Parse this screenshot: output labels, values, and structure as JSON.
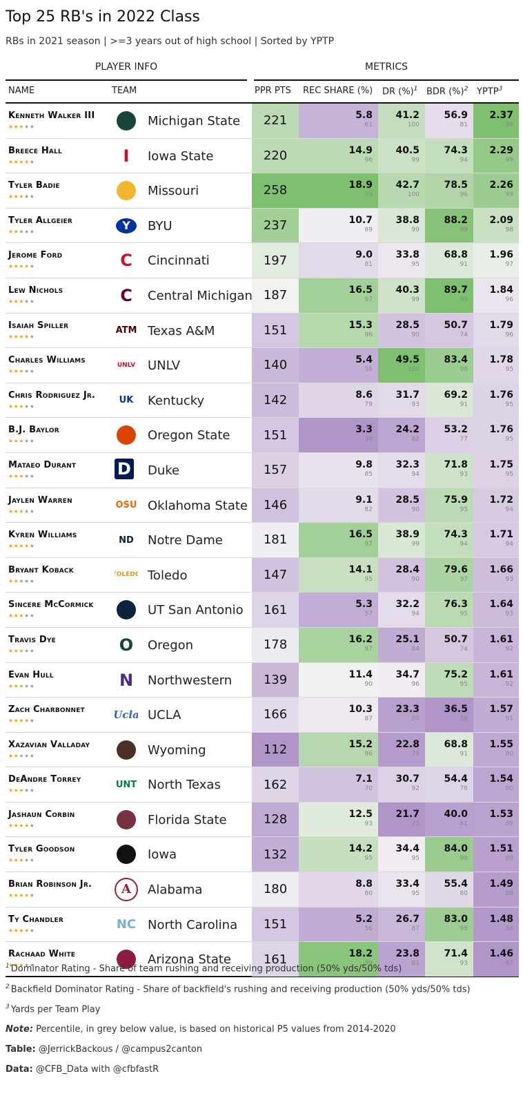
{
  "title": "Top 25 RB's in 2022 Class",
  "subtitle": "RBs in 2021 season | >=3 years out of high school | Sorted by YPTP",
  "groups": {
    "player_info": "PLAYER INFO",
    "metrics": "METRICS"
  },
  "columns": {
    "name": "NAME",
    "team": "TEAM",
    "ppr": "PPR PTS",
    "rec": "REC SHARE (%)",
    "dr": "DR (%)",
    "dr_sup": "1",
    "bdr": "BDR (%)",
    "bdr_sup": "2",
    "yptp": "YPTP",
    "yptp_sup": "3"
  },
  "footnotes": {
    "f1_sup": "1",
    "f1": "Dominator Rating - Share of team rushing and receiving production (50% yds/50% tds)",
    "f2_sup": "2",
    "f2": "Backfield Dominator Rating - Share of backfield's rushing and receiving production (50% yds/50% tds)",
    "f3_sup": "3",
    "f3": "Yards per Team Play",
    "note_label": "Note:",
    "note": " Percentile, in grey below value, is based on historical P5 values from 2014-2020",
    "table_label": "Table:",
    "table": " @JerrickBackous / @campus2canton",
    "data_label": "Data:",
    "data": " @CFB_Data with @cfbfastR"
  },
  "colors": {
    "purple_dark": "#b095c9",
    "purple_light": "#f1e8f3",
    "neutral": "#f5f3f5",
    "green_light": "#e6f4e2",
    "green_dark": "#7fc070",
    "logo_red": "#c8102e"
  },
  "chart_data": {
    "type": "table",
    "title": "Top 25 RB's in 2022 Class",
    "ppr_range": [
      112,
      258
    ],
    "rows": [
      {
        "name": "Kenneth Walker III",
        "stars": 3,
        "team": "Michigan State",
        "logo": "spartan-helmet",
        "logo_text": "",
        "logo_color": "#18453b",
        "ppr": 221,
        "rec": 5.8,
        "rec_pct": 61,
        "dr": 41.2,
        "dr_pct": 100,
        "bdr": 56.9,
        "bdr_pct": 81,
        "yptp": 2.37,
        "yptp_pct": 99
      },
      {
        "name": "Breece Hall",
        "stars": 4,
        "team": "Iowa State",
        "logo": "iowa-state-i",
        "logo_text": "I",
        "logo_color": "#c8102e",
        "ppr": 220,
        "rec": 14.9,
        "rec_pct": 96,
        "dr": 40.5,
        "dr_pct": 99,
        "bdr": 74.3,
        "bdr_pct": 94,
        "yptp": 2.29,
        "yptp_pct": 99
      },
      {
        "name": "Tyler Badie",
        "stars": 3,
        "team": "Missouri",
        "logo": "missouri-tiger",
        "logo_text": "",
        "logo_color": "#f1b82d",
        "ppr": 258,
        "rec": 18.9,
        "rec_pct": 99,
        "dr": 42.7,
        "dr_pct": 100,
        "bdr": 78.5,
        "bdr_pct": 96,
        "yptp": 2.26,
        "yptp_pct": 99
      },
      {
        "name": "Tyler Allgeier",
        "stars": 2,
        "team": "BYU",
        "logo": "byu-oval",
        "logo_text": "Y",
        "logo_color": "#0033a0",
        "ppr": 237,
        "rec": 10.7,
        "rec_pct": 89,
        "dr": 38.8,
        "dr_pct": 99,
        "bdr": 88.2,
        "bdr_pct": 99,
        "yptp": 2.09,
        "yptp_pct": 98
      },
      {
        "name": "Jerome Ford",
        "stars": 4,
        "team": "Cincinnati",
        "logo": "cincinnati-c",
        "logo_text": "C",
        "logo_color": "#c8102e",
        "ppr": 197,
        "rec": 9.0,
        "rec_pct": 81,
        "dr": 33.8,
        "dr_pct": 95,
        "bdr": 68.8,
        "bdr_pct": 91,
        "yptp": 1.96,
        "yptp_pct": 97
      },
      {
        "name": "Lew Nichols",
        "stars": 3,
        "team": "Central Michigan",
        "logo": "central-michigan-c",
        "logo_text": "C",
        "logo_color": "#6a0032",
        "ppr": 187,
        "rec": 16.5,
        "rec_pct": 97,
        "dr": 40.3,
        "dr_pct": 99,
        "bdr": 89.7,
        "bdr_pct": 99,
        "yptp": 1.84,
        "yptp_pct": 96
      },
      {
        "name": "Isaiah Spiller",
        "stars": 4,
        "team": "Texas A&M",
        "logo": "texas-am-atm",
        "logo_text": "ATM",
        "logo_color": "#500000",
        "ppr": 151,
        "rec": 15.3,
        "rec_pct": 96,
        "dr": 28.5,
        "dr_pct": 90,
        "bdr": 50.7,
        "bdr_pct": 74,
        "yptp": 1.79,
        "yptp_pct": 96
      },
      {
        "name": "Charles Williams",
        "stars": 3,
        "team": "UNLV",
        "logo": "unlv-wordmark",
        "logo_text": "UNLV",
        "logo_color": "#cf0a2c",
        "ppr": 140,
        "rec": 5.4,
        "rec_pct": 58,
        "dr": 49.5,
        "dr_pct": 100,
        "bdr": 83.4,
        "bdr_pct": 98,
        "yptp": 1.78,
        "yptp_pct": 95
      },
      {
        "name": "Chris Rodriguez Jr.",
        "stars": 3,
        "team": "Kentucky",
        "logo": "kentucky-uk",
        "logo_text": "UK",
        "logo_color": "#0033a0",
        "ppr": 142,
        "rec": 8.6,
        "rec_pct": 79,
        "dr": 31.7,
        "dr_pct": 93,
        "bdr": 69.2,
        "bdr_pct": 91,
        "yptp": 1.76,
        "yptp_pct": 95
      },
      {
        "name": "B.J. Baylor",
        "stars": 3,
        "team": "Oregon State",
        "logo": "oregon-state-beaver",
        "logo_text": "",
        "logo_color": "#dc4405",
        "ppr": 151,
        "rec": 3.3,
        "rec_pct": 38,
        "dr": 24.2,
        "dr_pct": 82,
        "bdr": 53.2,
        "bdr_pct": 77,
        "yptp": 1.76,
        "yptp_pct": 95
      },
      {
        "name": "Mataeo Durant",
        "stars": 3,
        "team": "Duke",
        "logo": "duke-d",
        "logo_text": "D",
        "logo_color": "#001a57",
        "ppr": 157,
        "rec": 9.8,
        "rec_pct": 85,
        "dr": 32.3,
        "dr_pct": 94,
        "bdr": 71.8,
        "bdr_pct": 93,
        "yptp": 1.75,
        "yptp_pct": 95
      },
      {
        "name": "Jaylen Warren",
        "stars": 3,
        "team": "Oklahoma State",
        "logo": "oklahoma-state-osu",
        "logo_text": "OSU",
        "logo_color": "#ff6600",
        "ppr": 146,
        "rec": 9.1,
        "rec_pct": 82,
        "dr": 28.5,
        "dr_pct": 90,
        "bdr": 75.9,
        "bdr_pct": 95,
        "yptp": 1.72,
        "yptp_pct": 94
      },
      {
        "name": "Kyren Williams",
        "stars": 4,
        "team": "Notre Dame",
        "logo": "notre-dame-nd",
        "logo_text": "ND",
        "logo_color": "#0c2340",
        "ppr": 181,
        "rec": 16.5,
        "rec_pct": 97,
        "dr": 38.9,
        "dr_pct": 99,
        "bdr": 74.3,
        "bdr_pct": 94,
        "yptp": 1.71,
        "yptp_pct": 94
      },
      {
        "name": "Bryant Koback",
        "stars": 2,
        "team": "Toledo",
        "logo": "toledo-rocket",
        "logo_text": "TOLEDO",
        "logo_color": "#d4a017",
        "ppr": 147,
        "rec": 14.1,
        "rec_pct": 95,
        "dr": 28.4,
        "dr_pct": 90,
        "bdr": 79.6,
        "bdr_pct": 97,
        "yptp": 1.66,
        "yptp_pct": 93
      },
      {
        "name": "Sincere McCormick",
        "stars": 3,
        "team": "UT San Antonio",
        "logo": "utsa-roadrunner",
        "logo_text": "",
        "logo_color": "#0c2340",
        "ppr": 161,
        "rec": 5.3,
        "rec_pct": 57,
        "dr": 32.2,
        "dr_pct": 94,
        "bdr": 76.3,
        "bdr_pct": 95,
        "yptp": 1.64,
        "yptp_pct": 93
      },
      {
        "name": "Travis Dye",
        "stars": 3,
        "team": "Oregon",
        "logo": "oregon-o",
        "logo_text": "O",
        "logo_color": "#154733",
        "ppr": 178,
        "rec": 16.2,
        "rec_pct": 97,
        "dr": 25.1,
        "dr_pct": 84,
        "bdr": 50.7,
        "bdr_pct": 74,
        "yptp": 1.61,
        "yptp_pct": 92
      },
      {
        "name": "Evan Hull",
        "stars": 3,
        "team": "Northwestern",
        "logo": "northwestern-n",
        "logo_text": "N",
        "logo_color": "#4e2a84",
        "ppr": 139,
        "rec": 11.4,
        "rec_pct": 90,
        "dr": 34.7,
        "dr_pct": 96,
        "bdr": 75.2,
        "bdr_pct": 95,
        "yptp": 1.61,
        "yptp_pct": 92
      },
      {
        "name": "Zach Charbonnet",
        "stars": 4,
        "team": "UCLA",
        "logo": "ucla-script",
        "logo_text": "Ucla",
        "logo_color": "#2d68c4",
        "ppr": 166,
        "rec": 10.3,
        "rec_pct": 87,
        "dr": 23.3,
        "dr_pct": 80,
        "bdr": 36.5,
        "bdr_pct": 56,
        "yptp": 1.57,
        "yptp_pct": 91
      },
      {
        "name": "Xazavian Valladay",
        "stars": 2,
        "team": "Wyoming",
        "logo": "wyoming-cowboy",
        "logo_text": "",
        "logo_color": "#492f24",
        "ppr": 112,
        "rec": 15.2,
        "rec_pct": 96,
        "dr": 22.8,
        "dr_pct": 78,
        "bdr": 68.8,
        "bdr_pct": 91,
        "yptp": 1.55,
        "yptp_pct": 90
      },
      {
        "name": "DeAndre Torrey",
        "stars": 3,
        "team": "North Texas",
        "logo": "north-texas-unt",
        "logo_text": "UNT",
        "logo_color": "#00853e",
        "ppr": 162,
        "rec": 7.1,
        "rec_pct": 70,
        "dr": 30.7,
        "dr_pct": 92,
        "bdr": 54.4,
        "bdr_pct": 78,
        "yptp": 1.54,
        "yptp_pct": 90
      },
      {
        "name": "Jashaun Corbin",
        "stars": 4,
        "team": "Florida State",
        "logo": "florida-state-seminole",
        "logo_text": "",
        "logo_color": "#782f40",
        "ppr": 128,
        "rec": 12.5,
        "rec_pct": 93,
        "dr": 21.7,
        "dr_pct": 75,
        "bdr": 40.0,
        "bdr_pct": 61,
        "yptp": 1.53,
        "yptp_pct": 89
      },
      {
        "name": "Tyler Goodson",
        "stars": 3,
        "team": "Iowa",
        "logo": "iowa-hawkeye",
        "logo_text": "",
        "logo_color": "#111111",
        "ppr": 132,
        "rec": 14.2,
        "rec_pct": 95,
        "dr": 34.4,
        "dr_pct": 95,
        "bdr": 84.0,
        "bdr_pct": 98,
        "yptp": 1.51,
        "yptp_pct": 89
      },
      {
        "name": "Brian Robinson Jr.",
        "stars": 4,
        "team": "Alabama",
        "logo": "alabama-a",
        "logo_text": "A",
        "logo_color": "#9e1b32",
        "ppr": 180,
        "rec": 8.8,
        "rec_pct": 80,
        "dr": 33.4,
        "dr_pct": 95,
        "bdr": 55.4,
        "bdr_pct": 80,
        "yptp": 1.49,
        "yptp_pct": 88
      },
      {
        "name": "Ty Chandler",
        "stars": 4,
        "team": "North Carolina",
        "logo": "north-carolina-nc",
        "logo_text": "NC",
        "logo_color": "#7bafd4",
        "ppr": 151,
        "rec": 5.2,
        "rec_pct": 56,
        "dr": 26.7,
        "dr_pct": 87,
        "bdr": 83.0,
        "bdr_pct": 98,
        "yptp": 1.48,
        "yptp_pct": 88
      },
      {
        "name": "Rachaad White",
        "stars": 3,
        "team": "Arizona State",
        "logo": "arizona-state-pitchfork",
        "logo_text": "",
        "logo_color": "#8c1d40",
        "ppr": 161,
        "rec": 18.2,
        "rec_pct": 99,
        "dr": 23.8,
        "dr_pct": 81,
        "bdr": 71.4,
        "bdr_pct": 93,
        "yptp": 1.46,
        "yptp_pct": 87
      }
    ]
  }
}
